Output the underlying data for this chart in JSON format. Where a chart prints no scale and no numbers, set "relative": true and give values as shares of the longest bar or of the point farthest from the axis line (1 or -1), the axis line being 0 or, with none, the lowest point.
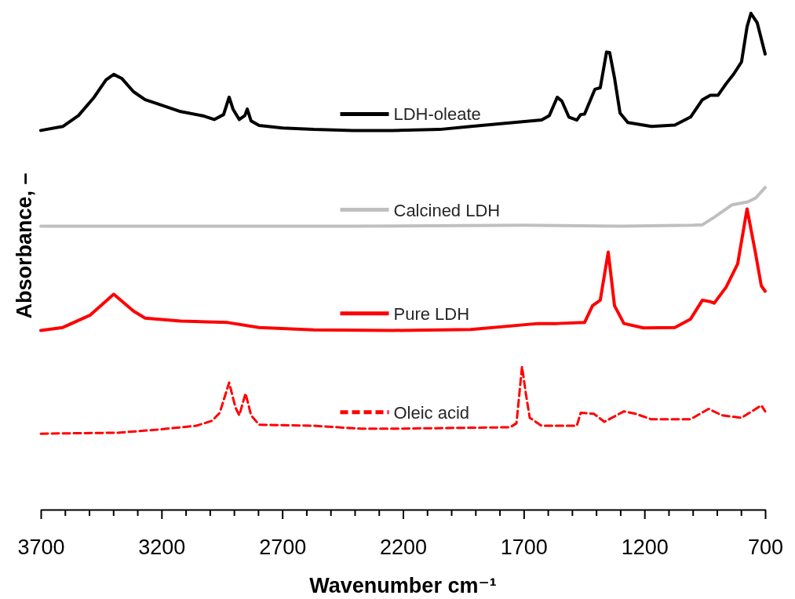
{
  "chart_data": {
    "type": "line",
    "relative": true,
    "xlabel": "Wavenumber cm⁻¹",
    "ylabel": "Absorbance, –",
    "xlim": [
      3700,
      700
    ],
    "xticks": [
      3700,
      {
        "value": 3600,
        "label": null
      },
      {
        "value": 3500,
        "label": null
      },
      {
        "value": 3400,
        "label": null
      },
      {
        "value": 3300,
        "label": null
      },
      3200,
      {
        "value": 3100,
        "label": null
      },
      {
        "value": 3000,
        "label": null
      },
      {
        "value": 2900,
        "label": null
      },
      {
        "value": 2800,
        "label": null
      },
      2700,
      {
        "value": 2600,
        "label": null
      },
      {
        "value": 2500,
        "label": null
      },
      {
        "value": 2400,
        "label": null
      },
      {
        "value": 2300,
        "label": null
      },
      2200,
      {
        "value": 2100,
        "label": null
      },
      {
        "value": 2000,
        "label": null
      },
      {
        "value": 1900,
        "label": null
      },
      {
        "value": 1800,
        "label": null
      },
      1700,
      {
        "value": 1600,
        "label": null
      },
      {
        "value": 1500,
        "label": null
      },
      {
        "value": 1400,
        "label": null
      },
      {
        "value": 1300,
        "label": null
      },
      1200,
      {
        "value": 1100,
        "label": null
      },
      {
        "value": 1000,
        "label": null
      },
      {
        "value": 900,
        "label": null
      },
      {
        "value": 800,
        "label": null
      },
      700
    ],
    "legend": "center",
    "grid": false,
    "marker": "none",
    "series": [
      {
        "name": "LDH-oleate",
        "color": "#000000",
        "line_style": "solid",
        "x": [
          3700,
          3609,
          3544,
          3479,
          3430,
          3398,
          3365,
          3316,
          3268,
          3219,
          3121,
          3024,
          2982,
          2943,
          2920,
          2904,
          2878,
          2855,
          2845,
          2829,
          2796,
          2699,
          2569,
          2406,
          2244,
          2049,
          1919,
          1626,
          1594,
          1561,
          1542,
          1513,
          1480,
          1464,
          1448,
          1405,
          1383,
          1357,
          1344,
          1324,
          1301,
          1269,
          1171,
          1074,
          1009,
          960,
          927,
          895,
          862,
          830,
          798,
          775,
          759,
          733,
          700
        ],
        "values": [
          0.764,
          0.772,
          0.794,
          0.831,
          0.866,
          0.877,
          0.869,
          0.842,
          0.826,
          0.818,
          0.802,
          0.793,
          0.786,
          0.796,
          0.831,
          0.807,
          0.786,
          0.794,
          0.807,
          0.783,
          0.774,
          0.769,
          0.766,
          0.764,
          0.764,
          0.766,
          0.772,
          0.785,
          0.794,
          0.831,
          0.823,
          0.791,
          0.785,
          0.796,
          0.797,
          0.847,
          0.85,
          0.922,
          0.921,
          0.87,
          0.799,
          0.78,
          0.772,
          0.775,
          0.791,
          0.826,
          0.835,
          0.835,
          0.858,
          0.878,
          0.902,
          0.973,
          1.0,
          0.981,
          0.918
        ]
      },
      {
        "name": "Calcined LDH",
        "color": "#bfbfbf",
        "line_style": "solid",
        "x": [
          3700,
          3000,
          2400,
          1700,
          1300,
          1000,
          960,
          911,
          838,
          772,
          739,
          700
        ],
        "values": [
          0.571,
          0.571,
          0.571,
          0.573,
          0.571,
          0.573,
          0.574,
          0.589,
          0.614,
          0.62,
          0.628,
          0.649
        ]
      },
      {
        "name": "Pure LDH",
        "color": "#ff0000",
        "line_style": "solid",
        "x": [
          3700,
          3609,
          3495,
          3398,
          3316,
          3268,
          3121,
          2926,
          2796,
          2569,
          2244,
          1919,
          1640,
          1561,
          1448,
          1415,
          1383,
          1350,
          1324,
          1285,
          1204,
          1074,
          1009,
          960,
          927,
          911,
          862,
          814,
          775,
          742,
          716,
          700
        ],
        "values": [
          0.361,
          0.367,
          0.392,
          0.434,
          0.4,
          0.386,
          0.38,
          0.377,
          0.367,
          0.362,
          0.361,
          0.363,
          0.375,
          0.375,
          0.377,
          0.411,
          0.422,
          0.519,
          0.411,
          0.375,
          0.366,
          0.367,
          0.384,
          0.422,
          0.419,
          0.416,
          0.448,
          0.495,
          0.606,
          0.522,
          0.451,
          0.44
        ]
      },
      {
        "name": "Oleic acid",
        "color": "#ff0000",
        "line_style": "dashed",
        "x": [
          3700,
          3381,
          3219,
          3056,
          2991,
          2959,
          2920,
          2894,
          2878,
          2852,
          2829,
          2796,
          2569,
          2374,
          2244,
          1756,
          1730,
          1707,
          1691,
          1675,
          1626,
          1480,
          1464,
          1409,
          1366,
          1285,
          1236,
          1171,
          1009,
          934,
          879,
          798,
          716,
          700
        ],
        "values": [
          0.153,
          0.155,
          0.161,
          0.169,
          0.179,
          0.195,
          0.256,
          0.206,
          0.19,
          0.234,
          0.19,
          0.171,
          0.169,
          0.163,
          0.163,
          0.166,
          0.174,
          0.288,
          0.233,
          0.185,
          0.169,
          0.169,
          0.195,
          0.193,
          0.177,
          0.198,
          0.193,
          0.182,
          0.182,
          0.203,
          0.19,
          0.185,
          0.21,
          0.198
        ]
      }
    ]
  }
}
